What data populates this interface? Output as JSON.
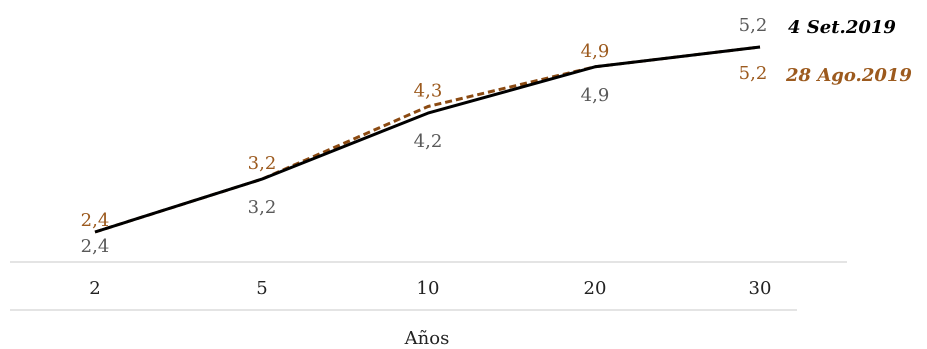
{
  "chart_data": {
    "type": "line",
    "xlabel": "Años",
    "ylabel": "",
    "categories": [
      "2",
      "5",
      "10",
      "20",
      "30"
    ],
    "ylim": [
      2.4,
      5.2
    ],
    "grid": false,
    "legend_placement": "right, at line ends",
    "series": [
      {
        "name": "4 Set.2019",
        "values": [
          2.4,
          3.2,
          4.2,
          4.9,
          5.2
        ],
        "labels": [
          "2,4",
          "3,2",
          "4,2",
          "4,9",
          "5,2"
        ],
        "label_color": "#595959",
        "line_color": "#000000",
        "style": "solid"
      },
      {
        "name": "28 Ago.2019",
        "values": [
          2.4,
          3.2,
          4.3,
          4.9,
          5.2
        ],
        "labels": [
          "2,4",
          "3,2",
          "4,3",
          "4,9",
          "5,2"
        ],
        "label_color": "#9C5A1E",
        "line_color": "#8B4A12",
        "style": "dashed"
      }
    ]
  }
}
